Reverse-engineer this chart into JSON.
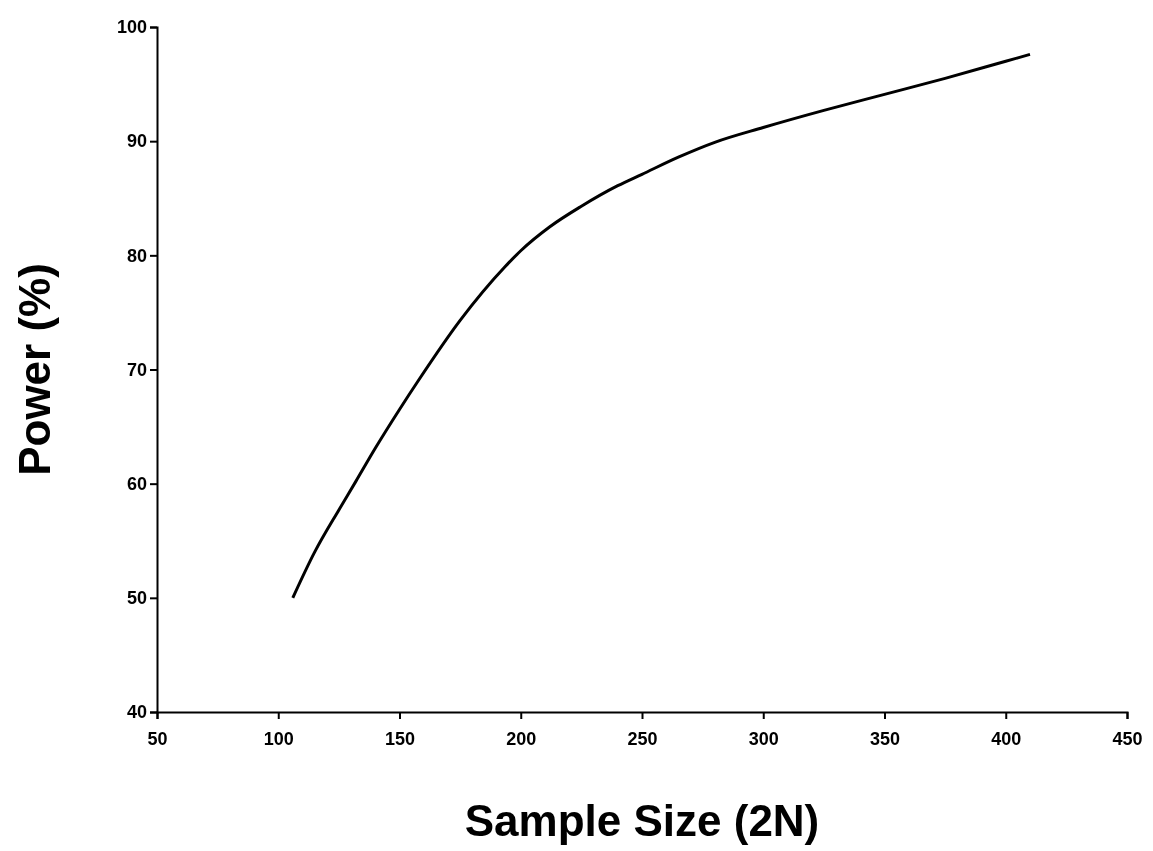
{
  "chart_data": {
    "type": "line",
    "xlabel": "Sample Size (2N)",
    "ylabel": "Power (%)",
    "x": [
      106,
      115,
      125,
      132,
      140,
      150,
      158,
      175,
      193.5,
      200,
      212,
      225,
      240,
      250,
      265,
      280,
      300,
      325,
      350,
      375,
      400,
      410
    ],
    "series": [
      {
        "color": "#000000",
        "values": [
          50,
          54,
          57.7,
          60.2,
          63.1,
          66.5,
          69.1,
          74.3,
          79,
          80.4,
          82.5,
          84.3,
          86.1,
          87.1,
          88.6,
          89.9,
          91.2,
          92.7,
          94.1,
          95.5,
          97,
          97.6
        ]
      }
    ],
    "xlim": [
      50,
      450
    ],
    "xticks": [
      50,
      100,
      150,
      200,
      250,
      300,
      350,
      400,
      450
    ],
    "ylim": [
      40,
      100
    ],
    "yticks": [
      40,
      50,
      60,
      70,
      80,
      90,
      100
    ],
    "grid": false,
    "marker": "none",
    "line_style": "solid"
  }
}
